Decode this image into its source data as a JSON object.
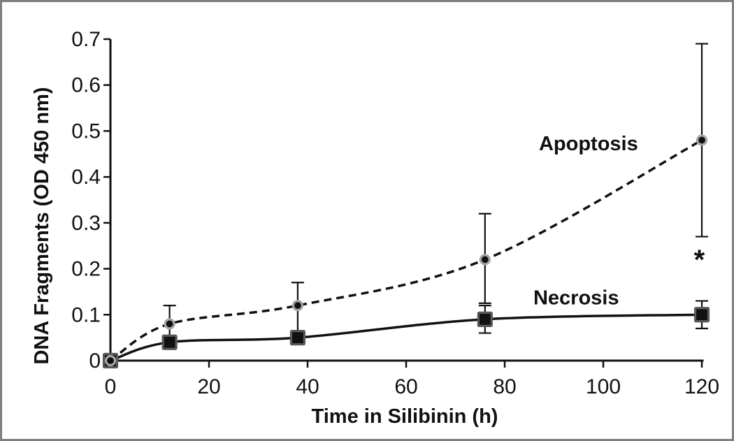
{
  "figure": {
    "border_color": "#7f7f7f",
    "background": "#ffffff"
  },
  "chart_data": {
    "type": "line",
    "title": "",
    "xlabel": "Time in Silibinin (h)",
    "ylabel": "DNA Fragments (OD 450 nm)",
    "xlim": [
      0,
      120
    ],
    "ylim": [
      0,
      0.7
    ],
    "xticks": [
      0,
      20,
      40,
      60,
      80,
      100,
      120
    ],
    "yticks": [
      0,
      0.1,
      0.2,
      0.3,
      0.4,
      0.5,
      0.6,
      0.7
    ],
    "grid": false,
    "legend": "inline-text-labels",
    "x": [
      0,
      12,
      38,
      76,
      120
    ],
    "series": [
      {
        "name": "Apoptosis",
        "values": [
          0,
          0.08,
          0.12,
          0.22,
          0.48
        ],
        "err_up": [
          0,
          0.04,
          0.05,
          0.1,
          0.21
        ],
        "err_down": [
          0,
          0.04,
          0.07,
          0.095,
          0.21
        ],
        "line": "dashed",
        "marker": "circle",
        "marker_fill": "#111111",
        "marker_edge": "#a6a6a6",
        "label_pos": {
          "x": 97,
          "y": 0.473
        }
      },
      {
        "name": "Necrosis",
        "values": [
          0,
          0.04,
          0.05,
          0.09,
          0.1
        ],
        "err_up": [
          0,
          0,
          0,
          0.03,
          0.03
        ],
        "err_down": [
          0,
          0,
          0,
          0.03,
          0.03
        ],
        "line": "solid",
        "marker": "square",
        "marker_fill": "#111111",
        "marker_edge": "#595959",
        "label_pos": {
          "x": 94.5,
          "y": 0.138
        }
      }
    ],
    "annotations": [
      {
        "text": "*",
        "x": 119.5,
        "y": 0.23,
        "font_size": 40,
        "dy_factor": 0.5
      }
    ],
    "line_color": "#111111",
    "axis_color": "#111111"
  }
}
